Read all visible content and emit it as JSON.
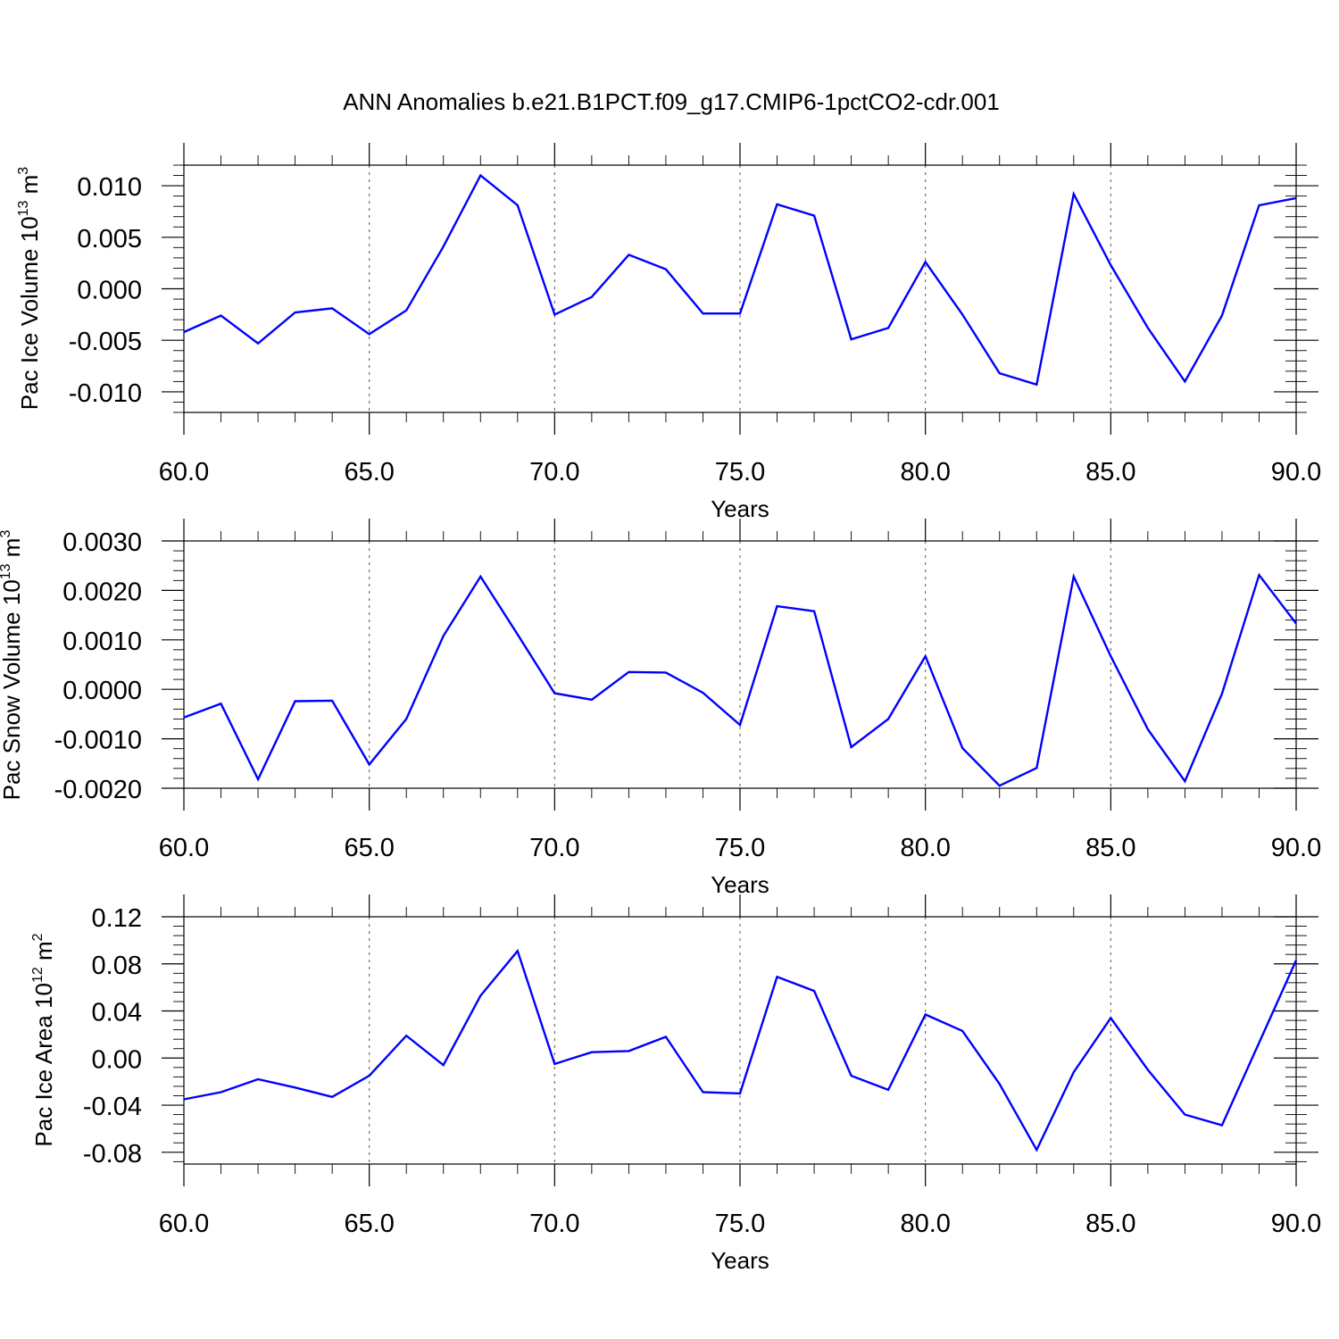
{
  "title": "ANN Anomalies b.e21.B1PCT.f09_g17.CMIP6-1pctCO2-cdr.001",
  "colors": {
    "series": "#0000ff",
    "axis": "#000000",
    "grid": "#555555"
  },
  "chart_data": [
    {
      "type": "line",
      "title": "",
      "xlabel": "Years",
      "ylabel": {
        "prefix": "Pac Ice Volume 10",
        "sup": "13",
        "unit": " m",
        "unit_sup": "3"
      },
      "xlim": [
        60,
        90
      ],
      "ylim": [
        -0.012,
        0.012
      ],
      "x_ticks": [
        60,
        65,
        70,
        75,
        80,
        85,
        90
      ],
      "x_tick_labels": [
        "60.0",
        "65.0",
        "70.0",
        "75.0",
        "80.0",
        "85.0",
        "90.0"
      ],
      "y_ticks": [
        -0.01,
        -0.005,
        0,
        0.005,
        0.01
      ],
      "y_tick_labels": [
        "-0.010",
        "-0.005",
        "0.000",
        "0.005",
        "0.010"
      ],
      "y_minor_step": 0.001,
      "grid": "dashed vertical at major x ticks",
      "x": [
        60,
        61,
        62,
        63,
        64,
        65,
        66,
        67,
        68,
        69,
        70,
        71,
        72,
        73,
        74,
        75,
        76,
        77,
        78,
        79,
        80,
        81,
        82,
        83,
        84,
        85,
        86,
        87,
        88,
        89,
        90
      ],
      "values": [
        -0.0042,
        -0.0026,
        -0.0053,
        -0.0023,
        -0.0019,
        -0.0044,
        -0.0021,
        0.0041,
        0.011,
        0.0081,
        -0.0025,
        -0.0008,
        0.0033,
        0.0019,
        -0.0024,
        -0.0024,
        0.0082,
        0.0071,
        -0.0049,
        -0.0038,
        0.0026,
        -0.0025,
        -0.0082,
        -0.0093,
        0.0092,
        0.0023,
        -0.0038,
        -0.009,
        -0.0026,
        0.0081,
        0.0088
      ]
    },
    {
      "type": "line",
      "title": "",
      "xlabel": "Years",
      "ylabel": {
        "prefix": "Pac Snow Volume 10",
        "sup": "13",
        "unit": " m",
        "unit_sup": "3"
      },
      "xlim": [
        60,
        90
      ],
      "ylim": [
        -0.002,
        0.003
      ],
      "x_ticks": [
        60,
        65,
        70,
        75,
        80,
        85,
        90
      ],
      "x_tick_labels": [
        "60.0",
        "65.0",
        "70.0",
        "75.0",
        "80.0",
        "85.0",
        "90.0"
      ],
      "y_ticks": [
        -0.002,
        -0.001,
        0,
        0.001,
        0.002,
        0.003
      ],
      "y_tick_labels": [
        "-0.0020",
        "-0.0010",
        "0.0000",
        "0.0010",
        "0.0020",
        "0.0030"
      ],
      "y_minor_step": 0.0002,
      "grid": "dashed vertical at major x ticks",
      "x": [
        60,
        61,
        62,
        63,
        64,
        65,
        66,
        67,
        68,
        69,
        70,
        71,
        72,
        73,
        74,
        75,
        76,
        77,
        78,
        79,
        80,
        81,
        82,
        83,
        84,
        85,
        86,
        87,
        88,
        89,
        90
      ],
      "values": [
        -0.00057,
        -0.00029,
        -0.00182,
        -0.00024,
        -0.00023,
        -0.00152,
        -0.0006,
        0.00108,
        0.00228,
        0.00111,
        -8e-05,
        -0.00021,
        0.00035,
        0.00034,
        -7e-05,
        -0.00072,
        0.00168,
        0.00158,
        -0.00117,
        -0.0006,
        0.00067,
        -0.00119,
        -0.00195,
        -0.00159,
        0.00228,
        0.00067,
        -0.00081,
        -0.00186,
        -9e-05,
        0.00231,
        0.00133
      ]
    },
    {
      "type": "line",
      "title": "",
      "xlabel": "Years",
      "ylabel": {
        "prefix": "Pac Ice Area 10",
        "sup": "12",
        "unit": " m",
        "unit_sup": "2"
      },
      "xlim": [
        60,
        90
      ],
      "ylim": [
        -0.09,
        0.12
      ],
      "x_ticks": [
        60,
        65,
        70,
        75,
        80,
        85,
        90
      ],
      "x_tick_labels": [
        "60.0",
        "65.0",
        "70.0",
        "75.0",
        "80.0",
        "85.0",
        "90.0"
      ],
      "y_ticks": [
        -0.08,
        -0.04,
        0,
        0.04,
        0.08,
        0.12
      ],
      "y_tick_labels": [
        "-0.08",
        "-0.04",
        "0.00",
        "0.04",
        "0.08",
        "0.12"
      ],
      "y_minor_step": 0.008,
      "grid": "dashed vertical at major x ticks",
      "x": [
        60,
        61,
        62,
        63,
        64,
        65,
        66,
        67,
        68,
        69,
        70,
        71,
        72,
        73,
        74,
        75,
        76,
        77,
        78,
        79,
        80,
        81,
        82,
        83,
        84,
        85,
        86,
        87,
        88,
        89,
        90
      ],
      "values": [
        -0.035,
        -0.029,
        -0.018,
        -0.025,
        -0.033,
        -0.015,
        0.019,
        -0.006,
        0.053,
        0.091,
        -0.005,
        0.005,
        0.006,
        0.018,
        -0.029,
        -0.03,
        0.069,
        0.057,
        -0.015,
        -0.027,
        0.037,
        0.023,
        -0.022,
        -0.078,
        -0.012,
        0.034,
        -0.01,
        -0.048,
        -0.057,
        0.013,
        0.083
      ]
    }
  ]
}
